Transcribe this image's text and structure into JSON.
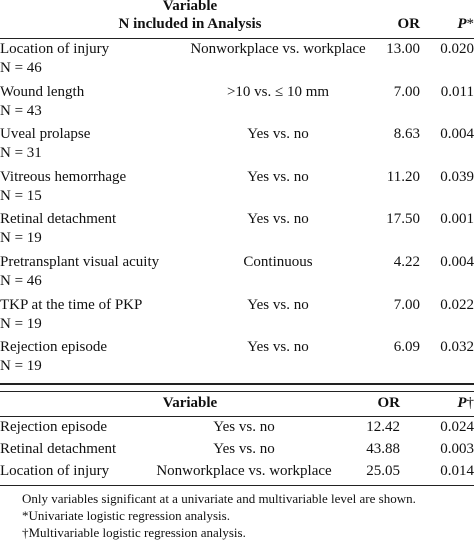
{
  "table1": {
    "header": {
      "variable": "Variable",
      "n_included": "N included in Analysis",
      "or": "OR",
      "p": "P",
      "p_mark": "*"
    },
    "rows": [
      {
        "variable": "Location of injury",
        "n": "N = 46",
        "comparison": "Nonworkplace vs. workplace",
        "or": "13.00",
        "p": "0.020"
      },
      {
        "variable": "Wound length",
        "n": "N = 43",
        "comparison": ">10 vs. ≤ 10 mm",
        "or": "7.00",
        "p": "0.011"
      },
      {
        "variable": "Uveal prolapse",
        "n": "N = 31",
        "comparison": "Yes vs. no",
        "or": "8.63",
        "p": "0.004"
      },
      {
        "variable": "Vitreous hemorrhage",
        "n": "N = 15",
        "comparison": "Yes vs. no",
        "or": "11.20",
        "p": "0.039"
      },
      {
        "variable": "Retinal detachment",
        "n": "N = 19",
        "comparison": "Yes vs. no",
        "or": "17.50",
        "p": "0.001"
      },
      {
        "variable": "Pretransplant visual acuity",
        "n": "N = 46",
        "comparison": "Continuous",
        "or": "4.22",
        "p": "0.004"
      },
      {
        "variable": "TKP at the time of PKP",
        "n": "N = 19",
        "comparison": "Yes vs. no",
        "or": "7.00",
        "p": "0.022"
      },
      {
        "variable": "Rejection episode",
        "n": "N = 19",
        "comparison": "Yes vs. no",
        "or": "6.09",
        "p": "0.032"
      }
    ]
  },
  "table2": {
    "header": {
      "variable": "Variable",
      "or": "OR",
      "p": "P",
      "p_mark": "†"
    },
    "rows": [
      {
        "variable": "Rejection episode",
        "comparison": "Yes vs. no",
        "or": "12.42",
        "p": "0.024"
      },
      {
        "variable": "Retinal detachment",
        "comparison": "Yes vs. no",
        "or": "43.88",
        "p": "0.003"
      },
      {
        "variable": "Location of injury",
        "comparison": "Nonworkplace vs. workplace",
        "or": "25.05",
        "p": "0.014"
      }
    ]
  },
  "footnotes": [
    "Only variables significant at a univariate and multivariable level are shown.",
    "*Univariate logistic regression analysis.",
    "†Multivariable logistic regression analysis."
  ]
}
